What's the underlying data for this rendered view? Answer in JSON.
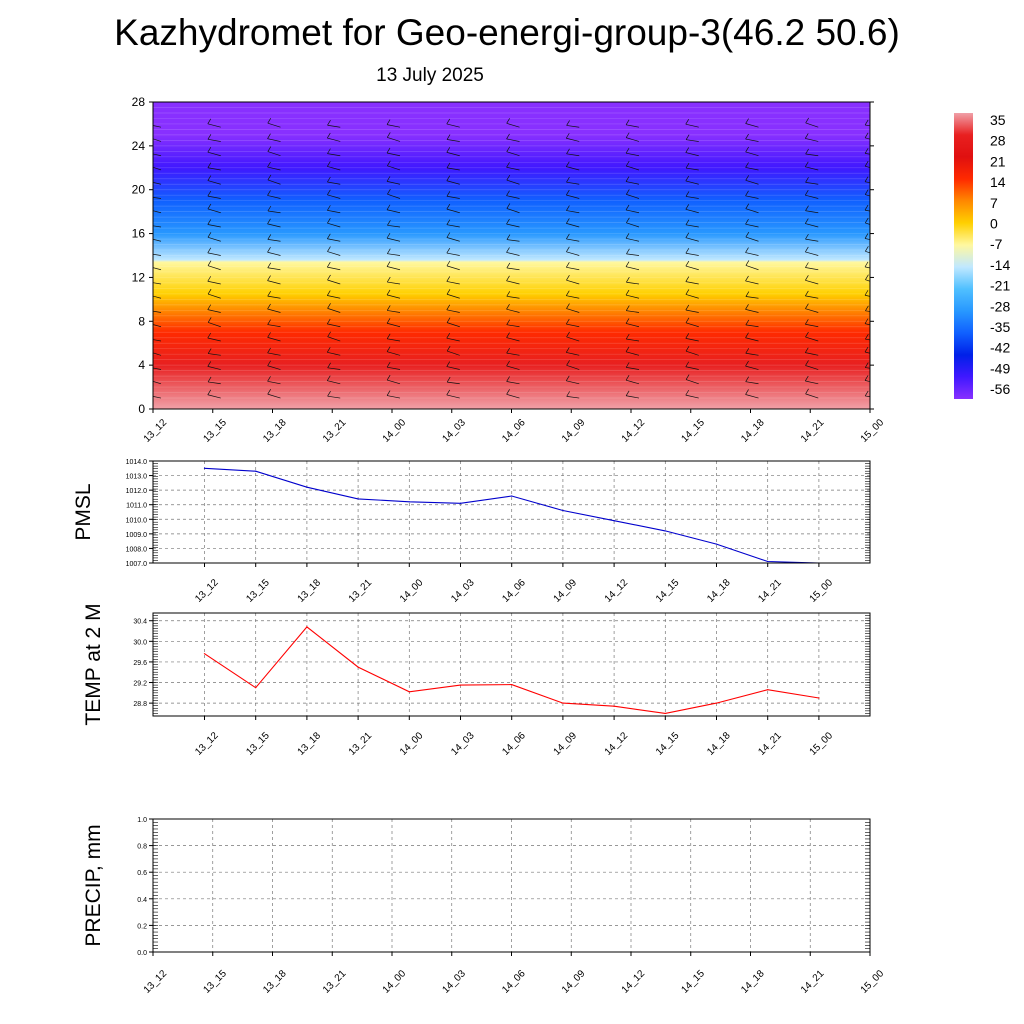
{
  "title": "Kazhydromet for Geo-energi-group-3(46.2 50.6)",
  "subtitle": "13 July 2025",
  "colors": {
    "pmsl_line": "#0000cc",
    "temp_line": "#ff0000",
    "precip_line": "#006400"
  },
  "chart_data": [
    {
      "type": "heatmap",
      "name": "temperature-wind-cross-section",
      "x_ticks": [
        "13_12",
        "13_15",
        "13_18",
        "13_21",
        "14_00",
        "14_03",
        "14_06",
        "14_09",
        "14_12",
        "14_15",
        "14_18",
        "14_21",
        "15_00"
      ],
      "y_ticks": [
        0,
        4,
        8,
        12,
        16,
        20,
        24,
        28
      ],
      "ylim": [
        0,
        28
      ],
      "colorbar_labels": [
        "35",
        "28",
        "21",
        "14",
        "7",
        "0",
        "-7",
        "-14",
        "-21",
        "-28",
        "-35",
        "-42",
        "-49",
        "-56"
      ],
      "colorbar_colors": [
        "#f0a0a8",
        "#e82020",
        "#e01010",
        "#ff2a00",
        "#ff8800",
        "#ffd000",
        "#fff8a0",
        "#c0e8ff",
        "#50c0ff",
        "#2898ff",
        "#1060ff",
        "#0020e8",
        "#4018ff",
        "#8830ff"
      ],
      "layers": [
        {
          "y": 0,
          "value": 33
        },
        {
          "y": 4,
          "value": 25
        },
        {
          "y": 7,
          "value": 14
        },
        {
          "y": 10.5,
          "value": 3
        },
        {
          "y": 13.4,
          "value": -8
        },
        {
          "y": 13.6,
          "value": -16
        },
        {
          "y": 16,
          "value": -28
        },
        {
          "y": 19,
          "value": -38
        },
        {
          "y": 22,
          "value": -48
        },
        {
          "y": 25,
          "value": -55
        },
        {
          "y": 28,
          "value": -58
        }
      ]
    },
    {
      "type": "line",
      "ylabel": "PMSL",
      "x": [
        "13_12",
        "13_15",
        "13_18",
        "13_21",
        "14_00",
        "14_03",
        "14_06",
        "14_09",
        "14_12",
        "14_15",
        "14_18",
        "14_21",
        "15_00"
      ],
      "values": [
        1013.5,
        1013.3,
        1012.2,
        1011.4,
        1011.2,
        1011.1,
        1011.6,
        1010.6,
        1009.9,
        1009.2,
        1008.3,
        1007.1,
        1007.0
      ],
      "y_ticks": [
        "1007.0",
        "1008.0",
        "1009.0",
        "1010.0",
        "1011.0",
        "1012.0",
        "1013.0",
        "1014.0"
      ],
      "ylim": [
        1007.0,
        1014.0
      ]
    },
    {
      "type": "line",
      "ylabel": "TEMP at 2 M",
      "x": [
        "13_12",
        "13_15",
        "13_18",
        "13_21",
        "14_00",
        "14_03",
        "14_06",
        "14_09",
        "14_12",
        "14_15",
        "14_18",
        "14_21",
        "15_00"
      ],
      "values": [
        29.76,
        29.1,
        30.28,
        29.5,
        29.02,
        29.15,
        29.16,
        28.8,
        28.74,
        28.6,
        28.8,
        29.06,
        28.9
      ],
      "y_ticks": [
        "28.8",
        "29.2",
        "29.6",
        "30.0",
        "30.4"
      ],
      "ylim": [
        28.55,
        30.55
      ]
    },
    {
      "type": "line",
      "ylabel": "PRECIP, mm",
      "x": [
        "13_12",
        "13_15",
        "13_18",
        "13_21",
        "14_00",
        "14_03",
        "14_06",
        "14_09",
        "14_12",
        "14_15",
        "14_18",
        "14_21",
        "15_00"
      ],
      "values": [
        0,
        0,
        0,
        0,
        0,
        0,
        0,
        0,
        0,
        0,
        0,
        0,
        0
      ],
      "y_ticks": [
        "0.0",
        "0.2",
        "0.4",
        "0.6",
        "0.8",
        "1.0"
      ],
      "ylim": [
        0,
        1.0
      ]
    }
  ]
}
